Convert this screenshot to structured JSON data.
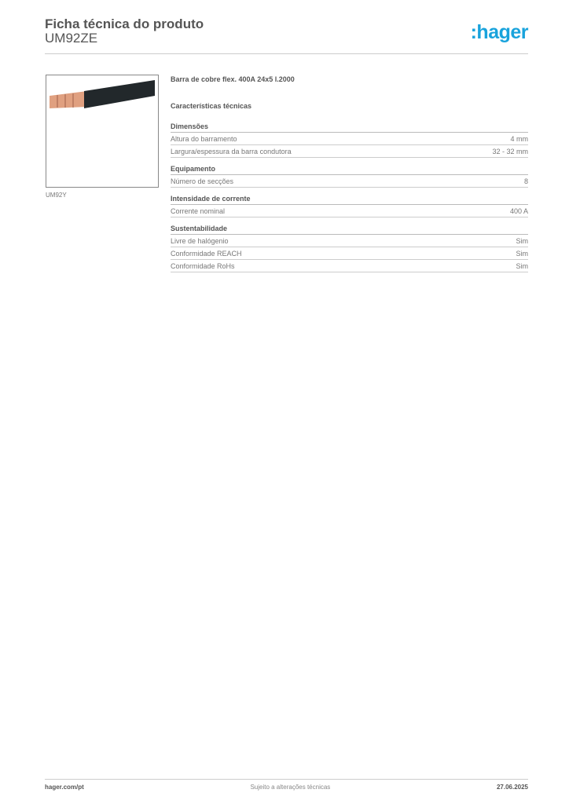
{
  "header": {
    "title": "Ficha técnica do produto",
    "product_code": "UM92ZE",
    "logo_text": ":hager",
    "brand_color": "#19a3dc"
  },
  "image": {
    "caption": "UM92Y"
  },
  "product": {
    "name": "Barra de cobre flex. 400A 24x5 l.2000",
    "section_title": "Características técnicas"
  },
  "groups": [
    {
      "title": "Dimensões",
      "rows": [
        {
          "label": "Altura do barramento",
          "value": "4 mm"
        },
        {
          "label": "Largura/espessura da barra condutora",
          "value": "32 - 32 mm"
        }
      ]
    },
    {
      "title": "Equipamento",
      "rows": [
        {
          "label": "Número de secções",
          "value": "8"
        }
      ]
    },
    {
      "title": "Intensidade de corrente",
      "rows": [
        {
          "label": "Corrente nominal",
          "value": "400 A"
        }
      ]
    },
    {
      "title": "Sustentabilidade",
      "rows": [
        {
          "label": "Livre de halógenio",
          "value": "Sim"
        },
        {
          "label": "Conformidade REACH",
          "value": "Sim"
        },
        {
          "label": "Conformidade RoHs",
          "value": "Sim"
        }
      ]
    }
  ],
  "footer": {
    "website": "hager.com/pt",
    "note": "Sujeito a alterações técnicas",
    "date": "27.06.2025"
  }
}
